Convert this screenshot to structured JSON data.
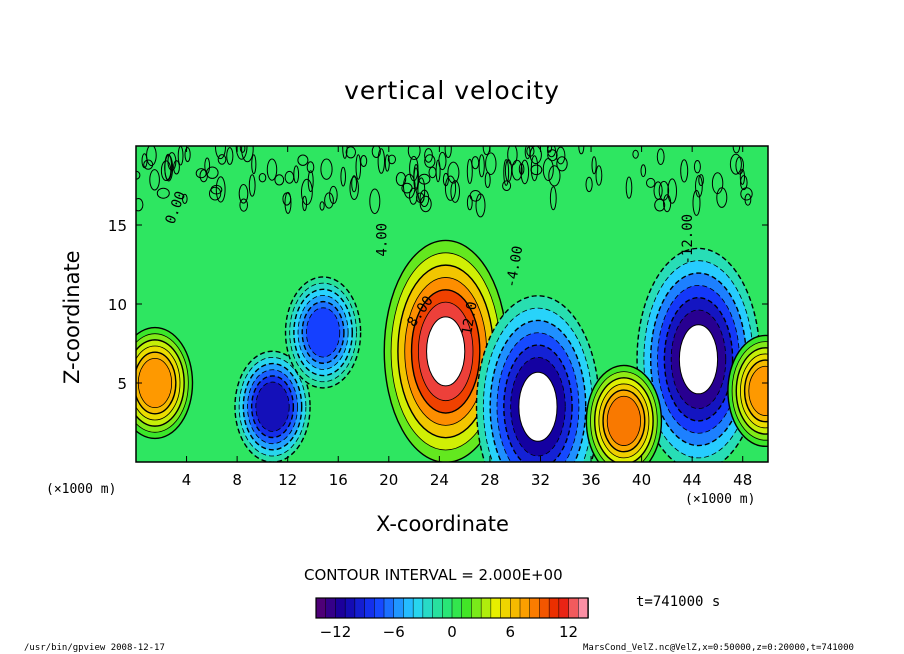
{
  "figure": {
    "title": "vertical velocity",
    "contour_interval_label": "CONTOUR INTERVAL = 2.000E+00",
    "time_label": "t=741000 s",
    "program_info": "/usr/bin/gpview   2008-12-17",
    "source_info": "MarsCond_VelZ.nc@VelZ,x=0:50000,z=0:20000,t=741000"
  },
  "chart_data": {
    "type": "heatmap",
    "title": "vertical velocity",
    "xlabel": "X-coordinate",
    "ylabel": "Z-coordinate",
    "x_unit_label": "(×1000 m)",
    "xlim": [
      0,
      50
    ],
    "ylim": [
      0,
      20
    ],
    "x_ticks": [
      4,
      8,
      12,
      16,
      20,
      24,
      28,
      32,
      36,
      40,
      44,
      48
    ],
    "y_ticks": [
      5,
      10,
      15
    ],
    "contour_interval": 2.0,
    "contour_labels": [
      "0.00",
      "4.00",
      "8.00",
      "12.0",
      "-4.00",
      "-12.00"
    ],
    "colorbar": {
      "min": -14,
      "max": 14,
      "ticks": [
        -12,
        -6,
        0,
        6,
        12
      ]
    },
    "features": [
      {
        "kind": "updraft",
        "x_center": 24.5,
        "z_center": 7,
        "peak": 14
      },
      {
        "kind": "downdraft",
        "x_center": 44.5,
        "z_center": 6.5,
        "peak": -14
      },
      {
        "kind": "updraft",
        "x_center": 1.5,
        "z_center": 5,
        "peak": 9
      },
      {
        "kind": "downdraft",
        "x_center": 10.8,
        "z_center": 3.5,
        "peak": -12
      },
      {
        "kind": "downdraft",
        "x_center": 31.8,
        "z_center": 3.5,
        "peak": -13
      },
      {
        "kind": "downdraft",
        "x_center": 14.8,
        "z_center": 8.2,
        "peak": -9
      },
      {
        "kind": "updraft",
        "x_center": 38.6,
        "z_center": 2.6,
        "peak": 10
      },
      {
        "kind": "updraft",
        "x_center": 49.8,
        "z_center": 4.5,
        "peak": 9
      }
    ]
  }
}
